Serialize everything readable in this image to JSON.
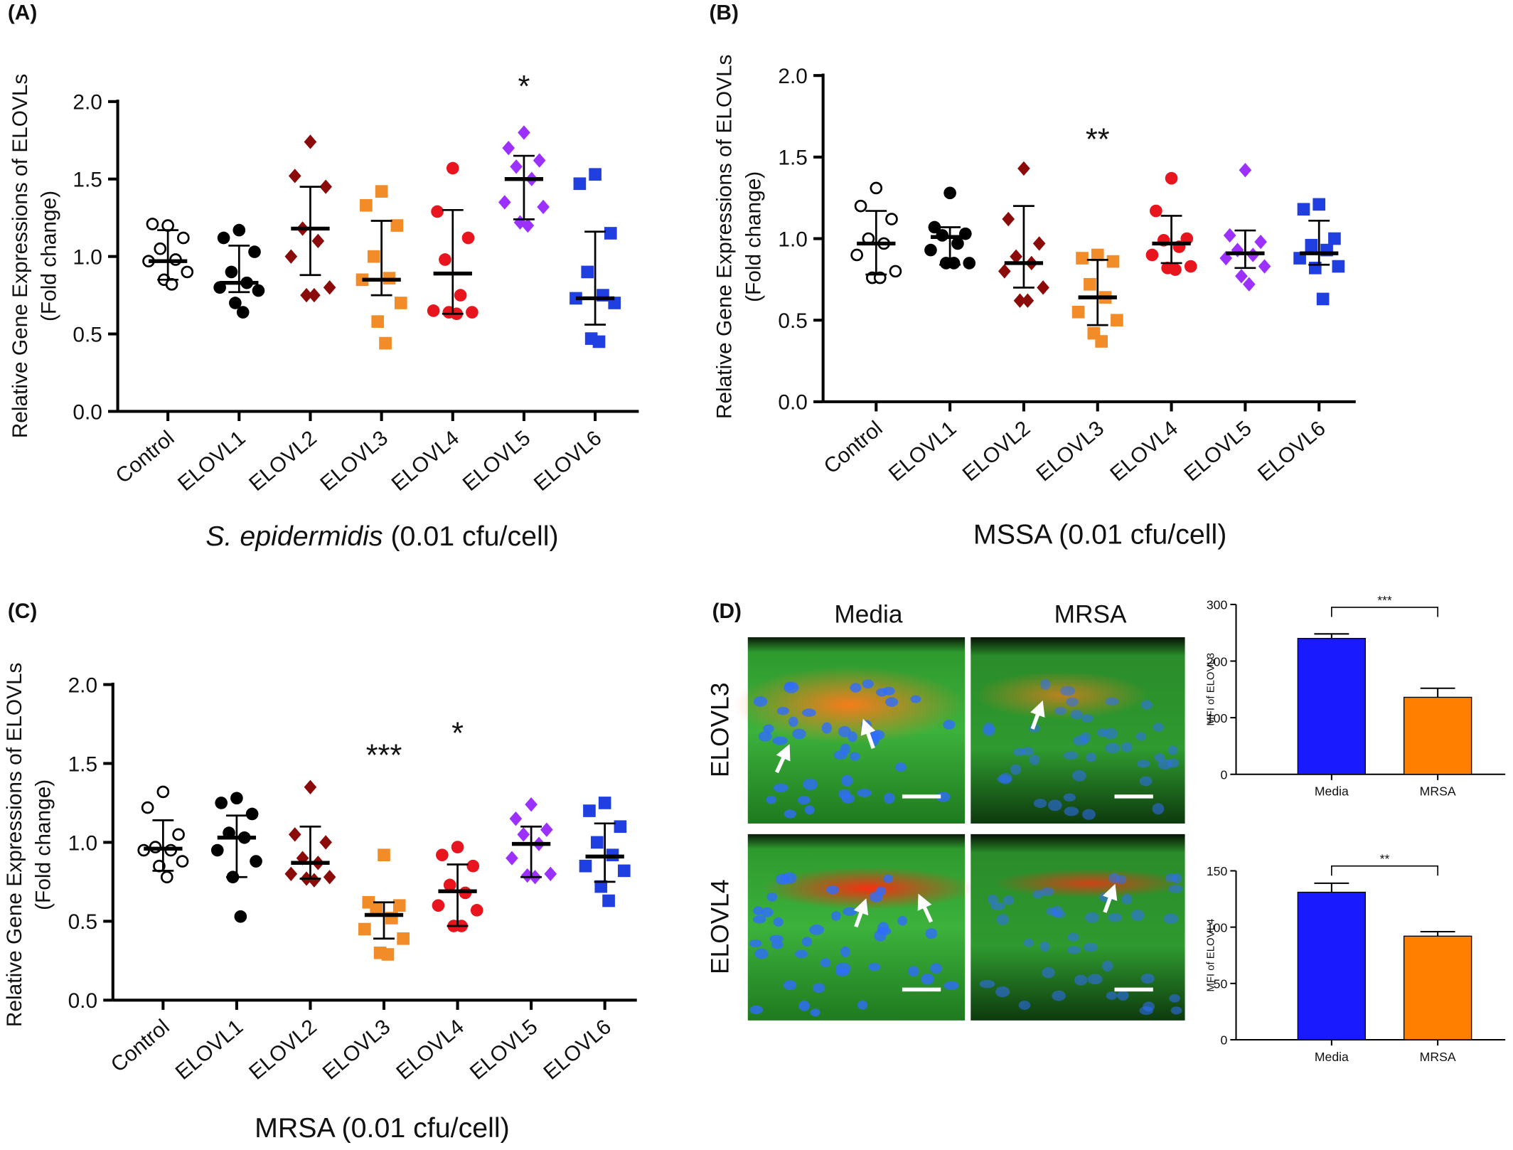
{
  "chart_data": [
    {
      "type": "dot",
      "panel": "(A)",
      "ylabel": [
        "Relative Gene Expressions of ELOVLs",
        "(Fold change)"
      ],
      "xlabel_italic": "S. epidermidis",
      "xlabel": " (0.01 cfu/cell)",
      "categories": [
        "Control",
        "ELOVL1",
        "ELOVL2",
        "ELOVL3",
        "ELOVL4",
        "ELOVL5",
        "ELOVL6"
      ],
      "colors": [
        "#000000",
        "#000000",
        "#8b0a0a",
        "#f28c28",
        "#e8141e",
        "#9b30ff",
        "#1f3fe0"
      ],
      "markers": [
        "circle-open",
        "circle",
        "diamond",
        "square",
        "circle",
        "diamond",
        "square"
      ],
      "points": [
        [
          1.2,
          1.21,
          1.12,
          1.05,
          0.98,
          0.97,
          0.9,
          0.85,
          0.82
        ],
        [
          1.17,
          1.12,
          1.03,
          0.9,
          0.83,
          0.8,
          0.78,
          0.7,
          0.64
        ],
        [
          1.74,
          1.52,
          1.45,
          1.18,
          1.1,
          1.0,
          0.8,
          0.75,
          0.75
        ],
        [
          1.42,
          1.33,
          1.2,
          1.0,
          0.86,
          0.85,
          0.7,
          0.58,
          0.44
        ],
        [
          1.57,
          1.29,
          1.12,
          0.98,
          0.75,
          0.65,
          0.64,
          0.64,
          0.63
        ],
        [
          1.8,
          1.7,
          1.62,
          1.58,
          1.5,
          1.35,
          1.32,
          1.22,
          1.2
        ],
        [
          1.53,
          1.47,
          1.15,
          0.9,
          0.75,
          0.73,
          0.7,
          0.47,
          0.45
        ]
      ],
      "center": [
        0.97,
        0.83,
        1.18,
        0.85,
        0.89,
        1.5,
        0.73
      ],
      "lower": [
        0.85,
        0.77,
        0.88,
        0.75,
        0.63,
        1.24,
        0.56
      ],
      "upper": [
        1.17,
        1.07,
        1.45,
        1.23,
        1.3,
        1.65,
        1.16
      ],
      "significance": [
        null,
        null,
        null,
        null,
        null,
        "*",
        null
      ],
      "ylim": [
        0,
        2
      ],
      "yticks": [
        {
          "value": 0,
          "label": "0.0"
        },
        0.5,
        {
          "value": 1,
          "label": "1.0"
        },
        1.5,
        {
          "value": 2,
          "label": "2.0"
        }
      ]
    },
    {
      "type": "dot",
      "panel": "(B)",
      "ylabel": [
        "Relative Gene Expressions of ELOVLs",
        "(Fold change)"
      ],
      "xlabel": "MSSA (0.01 cfu/cell)",
      "categories": [
        "Control",
        "ELOVL1",
        "ELOVL2",
        "ELOVL3",
        "ELOVL4",
        "ELOVL5",
        "ELOVL6"
      ],
      "colors": [
        "#000000",
        "#000000",
        "#8b0a0a",
        "#f28c28",
        "#e8141e",
        "#9b30ff",
        "#1f3fe0"
      ],
      "markers": [
        "circle-open",
        "circle",
        "diamond",
        "square",
        "circle",
        "diamond",
        "square"
      ],
      "points": [
        [
          1.31,
          1.2,
          1.12,
          1.0,
          0.97,
          0.9,
          0.8,
          0.76,
          0.76
        ],
        [
          1.28,
          1.07,
          1.03,
          1.02,
          0.97,
          0.93,
          0.85,
          0.85,
          0.85
        ],
        [
          1.43,
          1.12,
          0.97,
          0.89,
          0.85,
          0.8,
          0.7,
          0.62,
          0.62
        ],
        [
          0.9,
          0.88,
          0.86,
          0.72,
          0.64,
          0.55,
          0.5,
          0.42,
          0.37
        ],
        [
          1.37,
          1.17,
          1.0,
          0.99,
          0.95,
          0.9,
          0.83,
          0.82,
          0.81
        ],
        [
          1.42,
          1.02,
          0.98,
          0.93,
          0.9,
          0.88,
          0.83,
          0.77,
          0.72
        ],
        [
          1.21,
          1.18,
          1.0,
          0.96,
          0.93,
          0.88,
          0.83,
          0.82,
          0.63
        ]
      ],
      "center": [
        0.97,
        1.01,
        0.85,
        0.64,
        0.97,
        0.91,
        0.91
      ],
      "lower": [
        0.78,
        0.84,
        0.7,
        0.47,
        0.85,
        0.82,
        0.84
      ],
      "upper": [
        1.17,
        1.07,
        1.2,
        0.87,
        1.14,
        1.05,
        1.11
      ],
      "significance": [
        null,
        null,
        null,
        "**",
        null,
        null,
        null
      ],
      "ylim": [
        0,
        2
      ],
      "yticks": [
        {
          "value": 0,
          "label": "0.0"
        },
        0.5,
        {
          "value": 1,
          "label": "1.0"
        },
        1.5,
        {
          "value": 2,
          "label": "2.0"
        }
      ]
    },
    {
      "type": "dot",
      "panel": "(C)",
      "ylabel": [
        "Relative Gene Expressions of ELOVLs",
        "(Fold change)"
      ],
      "xlabel": "MRSA (0.01 cfu/cell)",
      "categories": [
        "Control",
        "ELOVL1",
        "ELOVL2",
        "ELOVL3",
        "ELOVL4",
        "ELOVL5",
        "ELOVL6"
      ],
      "colors": [
        "#000000",
        "#000000",
        "#8b0a0a",
        "#f28c28",
        "#e8141e",
        "#9b30ff",
        "#1f3fe0"
      ],
      "markers": [
        "circle-open",
        "circle",
        "diamond",
        "square",
        "circle",
        "diamond",
        "square"
      ],
      "points": [
        [
          1.32,
          1.22,
          1.05,
          0.97,
          0.95,
          0.95,
          0.88,
          0.85,
          0.78
        ],
        [
          1.28,
          1.25,
          1.18,
          1.06,
          1.03,
          0.95,
          0.88,
          0.78,
          0.53
        ],
        [
          1.35,
          1.05,
          1.0,
          0.9,
          0.87,
          0.8,
          0.78,
          0.77,
          0.76
        ],
        [
          0.92,
          0.62,
          0.6,
          0.58,
          0.52,
          0.45,
          0.39,
          0.3,
          0.29
        ],
        [
          0.97,
          0.92,
          0.85,
          0.73,
          0.68,
          0.6,
          0.57,
          0.47,
          0.47
        ],
        [
          1.24,
          1.15,
          1.08,
          1.05,
          0.99,
          0.9,
          0.8,
          0.79,
          0.78
        ],
        [
          1.25,
          1.2,
          1.1,
          1.0,
          0.92,
          0.85,
          0.82,
          0.72,
          0.63
        ]
      ],
      "center": [
        0.96,
        1.03,
        0.87,
        0.54,
        0.69,
        0.99,
        0.91
      ],
      "lower": [
        0.82,
        0.78,
        0.77,
        0.39,
        0.47,
        0.78,
        0.75
      ],
      "upper": [
        1.14,
        1.17,
        1.1,
        0.62,
        0.86,
        1.1,
        1.12
      ],
      "significance": [
        null,
        null,
        null,
        "***",
        "*",
        null,
        null
      ],
      "ylim": [
        0,
        2
      ],
      "yticks": [
        {
          "value": 0,
          "label": "0.0"
        },
        0.5,
        {
          "value": 1,
          "label": "1.0"
        },
        1.5,
        {
          "value": 2,
          "label": "2.0"
        }
      ]
    },
    {
      "type": "bar",
      "categories": [
        "Media",
        "MRSA"
      ],
      "values": [
        240,
        136
      ],
      "errors": [
        8,
        16
      ],
      "colors": [
        "#1a1aff",
        "#ff8000"
      ],
      "ylabel": "MFI of ELOVL3",
      "significance": "***",
      "ylim": [
        0,
        300
      ],
      "yticks": [
        0,
        100,
        200,
        300
      ]
    },
    {
      "type": "bar",
      "categories": [
        "Media",
        "MRSA"
      ],
      "values": [
        131,
        92
      ],
      "errors": [
        8,
        4
      ],
      "colors": [
        "#1a1aff",
        "#ff8000"
      ],
      "ylabel": "MFI of ELOVL4",
      "significance": "**",
      "ylim": [
        0,
        150
      ],
      "yticks": [
        0,
        50,
        100,
        150
      ]
    }
  ],
  "micrograph": {
    "panel": "(D)",
    "columns": [
      "Media",
      "MRSA"
    ],
    "rows": [
      "ELOVL3",
      "ELOVL4"
    ]
  }
}
